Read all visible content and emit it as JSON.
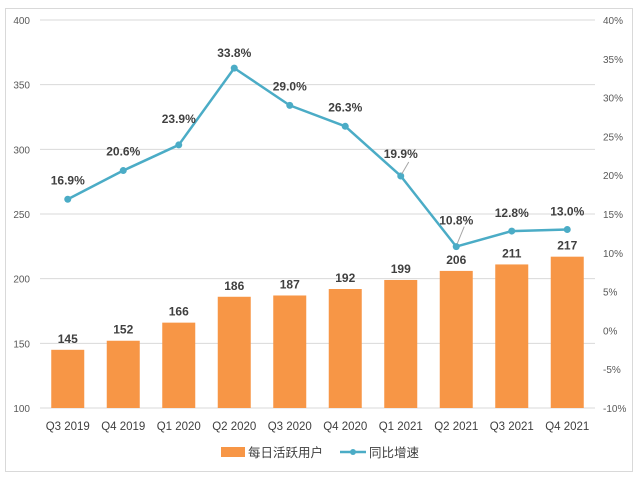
{
  "chart_data": {
    "type": "bar",
    "title": "",
    "categories": [
      "Q3 2019",
      "Q4 2019",
      "Q1 2020",
      "Q2 2020",
      "Q3 2020",
      "Q4 2020",
      "Q1 2021",
      "Q2 2021",
      "Q3 2021",
      "Q4 2021"
    ],
    "series": [
      {
        "name": "每日活跃用户",
        "type": "bar",
        "axis": "left",
        "color": "#F79646",
        "values": [
          145,
          152,
          166,
          186,
          187,
          192,
          199,
          206,
          211,
          217
        ],
        "labels": [
          "145",
          "152",
          "166",
          "186",
          "187",
          "192",
          "199",
          "206",
          "211",
          "217"
        ]
      },
      {
        "name": "同比增速",
        "type": "line",
        "axis": "right",
        "color": "#4BACC6",
        "values": [
          16.9,
          20.6,
          23.9,
          33.8,
          29.0,
          26.3,
          19.9,
          10.8,
          12.8,
          13.0
        ],
        "labels": [
          "16.9%",
          "20.6%",
          "23.9%",
          "33.8%",
          "29.0%",
          "26.3%",
          "19.9%",
          "10.8%",
          "12.8%",
          "13.0%"
        ]
      }
    ],
    "left_axis": {
      "range": [
        100,
        400
      ],
      "ticks": [
        100,
        150,
        200,
        250,
        300,
        350,
        400
      ],
      "tick_labels": [
        "100",
        "150",
        "200",
        "250",
        "300",
        "350",
        "400"
      ]
    },
    "right_axis": {
      "range": [
        -10,
        40
      ],
      "ticks": [
        -10,
        -5,
        0,
        5,
        10,
        15,
        20,
        25,
        30,
        35,
        40
      ],
      "tick_labels": [
        "-10%",
        "-5%",
        "0%",
        "5%",
        "10%",
        "15%",
        "20%",
        "25%",
        "30%",
        "35%",
        "40%"
      ]
    },
    "xlabel": "",
    "ylabel": "",
    "grid": true,
    "legend_position": "bottom"
  }
}
